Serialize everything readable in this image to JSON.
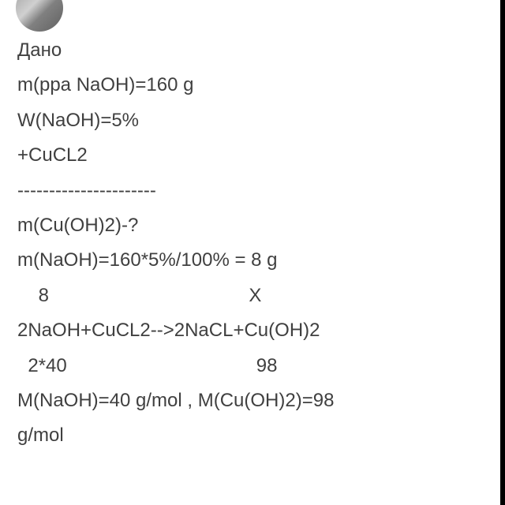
{
  "text_color": "#404040",
  "background_color": "#ffffff",
  "fontsize": 24,
  "line_height": 1.85,
  "lines": {
    "l0": "Дано",
    "l1": "m(ppa NaOH)=160 g",
    "l2": "W(NaOH)=5%",
    "l3": "+CuCL2",
    "l4": "----------------------",
    "l5": "m(Cu(OH)2)-?",
    "l6": "m(NaOH)=160*5%/100% = 8 g",
    "l7": "    8                                      X",
    "l8": "2NaOH+CuCL2-->2NaCL+Cu(OH)2",
    "l9": "  2*40                                    98",
    "l10": "M(NaOH)=40 g/mol , M(Cu(OH)2)=98",
    "l11": "g/mol"
  }
}
